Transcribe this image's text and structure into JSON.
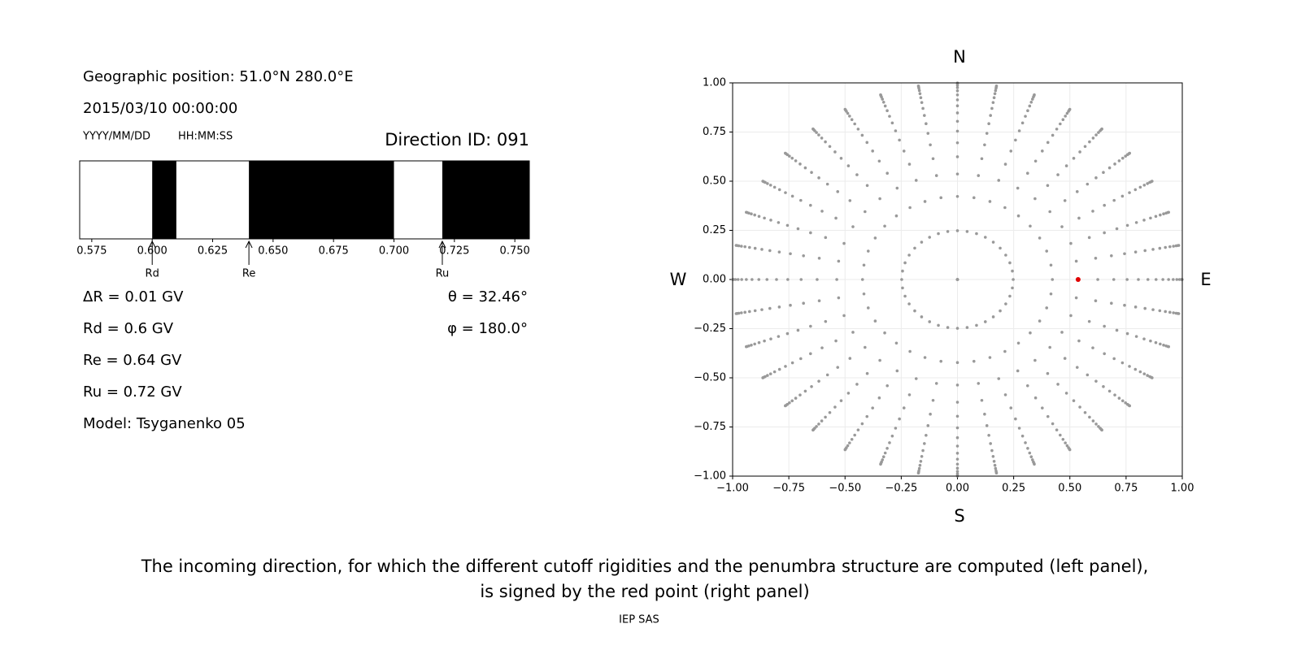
{
  "info": {
    "position": "Geographic position: 51.0°N 280.0°E",
    "datetime": "2015/03/10 00:00:00",
    "date_format": "YYYY/MM/DD",
    "time_format": "HH:MM:SS",
    "direction_id": "Direction ID: 091",
    "delta_r": "ΔR = 0.01 GV",
    "rd": "Rd = 0.6 GV",
    "re": "Re = 0.64 GV",
    "ru": "Ru = 0.72 GV",
    "model": "Model: Tsyganenko 05"
  },
  "chart_data": [
    {
      "type": "penumbra",
      "bins": [
        0.57,
        0.6,
        0.61,
        0.64,
        0.7,
        0.72,
        0.756
      ],
      "colors": [
        "#ffffff",
        "#000000",
        "#ffffff",
        "#000000",
        "#ffffff",
        "#000000"
      ],
      "xlim": [
        0.57,
        0.756
      ],
      "xticks": [
        0.575,
        {
          "value": 0.6,
          "label": "0.600"
        },
        0.625,
        {
          "value": 0.65,
          "label": "0.650"
        },
        0.675,
        {
          "value": 0.7,
          "label": "0.700"
        },
        0.725,
        {
          "value": 0.75,
          "label": "0.750"
        }
      ],
      "markers": [
        {
          "label": "Rd",
          "value": 0.6
        },
        {
          "label": "Re",
          "value": 0.64
        },
        {
          "label": "Ru",
          "value": 0.72
        }
      ]
    },
    {
      "type": "polar-scatter",
      "theta": [
        0,
        14.36,
        24.98,
        32.46,
        38.62,
        44.05,
        48.99,
        53.58,
        57.91,
        62.05,
        66.03,
        69.89,
        73.67,
        77.36,
        81.01,
        84.62,
        88.21
      ],
      "phi": [
        0,
        10,
        20,
        30,
        40,
        50,
        60,
        70,
        80,
        90,
        100,
        110,
        120,
        130,
        140,
        150,
        160,
        170,
        180,
        190,
        200,
        210,
        220,
        230,
        240,
        250,
        260,
        270,
        280,
        290,
        300,
        310,
        320,
        330,
        340,
        350
      ],
      "color": "#999999",
      "highlight": {
        "theta": {
          "value": 32.46,
          "label": "θ = 32.46°"
        },
        "phi": {
          "value": 180.0,
          "label": "φ = 180.0°"
        },
        "color": "#e00000"
      },
      "north": "N",
      "south": "S",
      "west": "W",
      "east": "E",
      "xlim": [
        -1,
        1
      ],
      "ylim": [
        -1,
        1
      ],
      "xticks": [
        {
          "value": -1,
          "label": "−1.00"
        },
        {
          "value": -0.75,
          "label": "−0.75"
        },
        {
          "value": -0.5,
          "label": "−0.50"
        },
        {
          "value": -0.25,
          "label": "−0.25"
        },
        {
          "value": 0,
          "label": "0.00"
        },
        {
          "value": 0.25,
          "label": "0.25"
        },
        {
          "value": 0.5,
          "label": "0.50"
        },
        {
          "value": 0.75,
          "label": "0.75"
        },
        {
          "value": 1,
          "label": "1.00"
        }
      ],
      "yticks": [
        {
          "value": -1,
          "label": "−1.00"
        },
        {
          "value": -0.75,
          "label": "−0.75"
        },
        {
          "value": -0.5,
          "label": "−0.50"
        },
        {
          "value": -0.25,
          "label": "−0.25"
        },
        {
          "value": 0,
          "label": "0.00"
        },
        {
          "value": 0.25,
          "label": "0.25"
        },
        {
          "value": 0.5,
          "label": "0.50"
        },
        {
          "value": 0.75,
          "label": "0.75"
        },
        {
          "value": 1,
          "label": "1.00"
        }
      ],
      "grid": true
    }
  ],
  "caption": [
    "The incoming direction, for which the different cutoff rigidities and the penumbra structure are computed (left panel),",
    "is signed by the red point (right panel)"
  ],
  "footer": "IEP SAS"
}
